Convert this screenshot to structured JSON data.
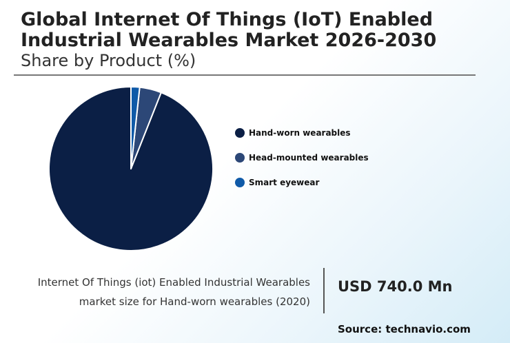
{
  "header": {
    "title": "Global Internet Of Things (IoT) Enabled Industrial Wearables Market 2026-2030",
    "subtitle": "Share by Product (%)"
  },
  "chart_data": {
    "type": "pie",
    "categories": [
      "Hand-worn wearables",
      "Head-mounted wearables",
      "Smart eyewear"
    ],
    "values": [
      94,
      4.3,
      1.7
    ],
    "colors": [
      "#0b1f45",
      "#2c4777",
      "#0f5aa8"
    ],
    "legend_position": "right"
  },
  "legend": {
    "items": [
      {
        "label": "Hand-worn wearables",
        "color": "#0b1f45"
      },
      {
        "label": "Head-mounted wearables",
        "color": "#2c4777"
      },
      {
        "label": "Smart eyewear",
        "color": "#0f5aa8"
      }
    ]
  },
  "footer": {
    "caption_line1": "Internet Of Things (iot) Enabled Industrial Wearables",
    "caption_line2": "market size for Hand-worn wearables (2020)",
    "value": "USD 740.0 Mn",
    "source": "Source: technavio.com"
  }
}
